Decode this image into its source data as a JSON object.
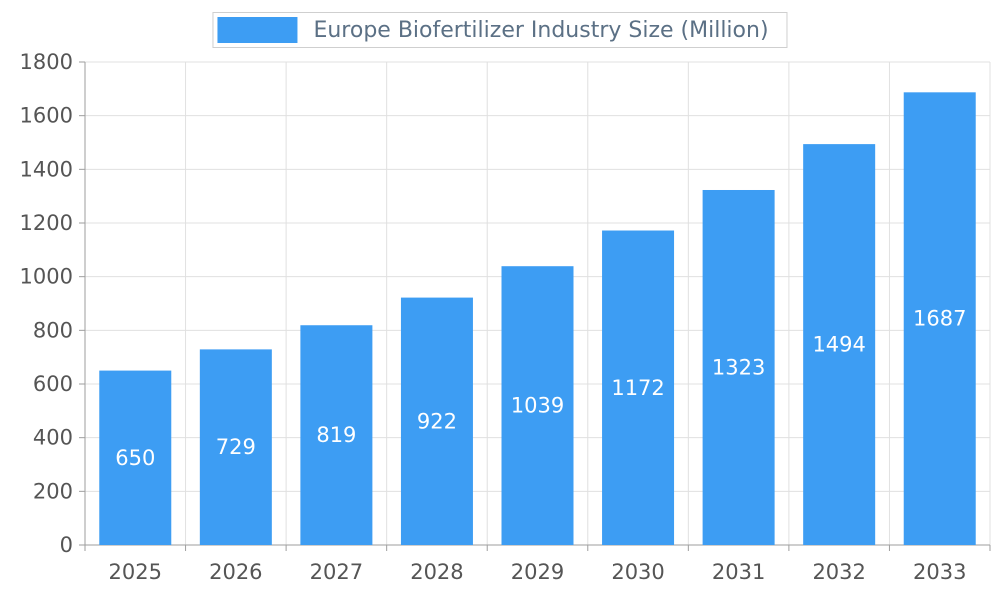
{
  "legend": {
    "label": "Europe Biofertilizer Industry Size (Million)"
  },
  "colors": {
    "bar": "#3d9df3",
    "grid": "#e0e0e0",
    "axis": "#9e9e9e",
    "tick_text": "#555555",
    "bar_label": "#ffffff",
    "title_text": "#5b7085"
  },
  "chart_data": {
    "type": "bar",
    "title": "Europe Biofertilizer Industry Size (Million)",
    "categories": [
      "2025",
      "2026",
      "2027",
      "2028",
      "2029",
      "2030",
      "2031",
      "2032",
      "2033"
    ],
    "values": [
      650,
      729,
      819,
      922,
      1039,
      1172,
      1323,
      1494,
      1687
    ],
    "xlabel": "",
    "ylabel": "",
    "ylim": [
      0,
      1800
    ],
    "ytick_step": 200,
    "ytick_labels": [
      "0",
      "200",
      "400",
      "600",
      "800",
      "1000",
      "1200",
      "1400",
      "1600",
      "1800"
    ],
    "grid": true,
    "legend_position": "top-center",
    "bar_value_labels_inside": true
  }
}
